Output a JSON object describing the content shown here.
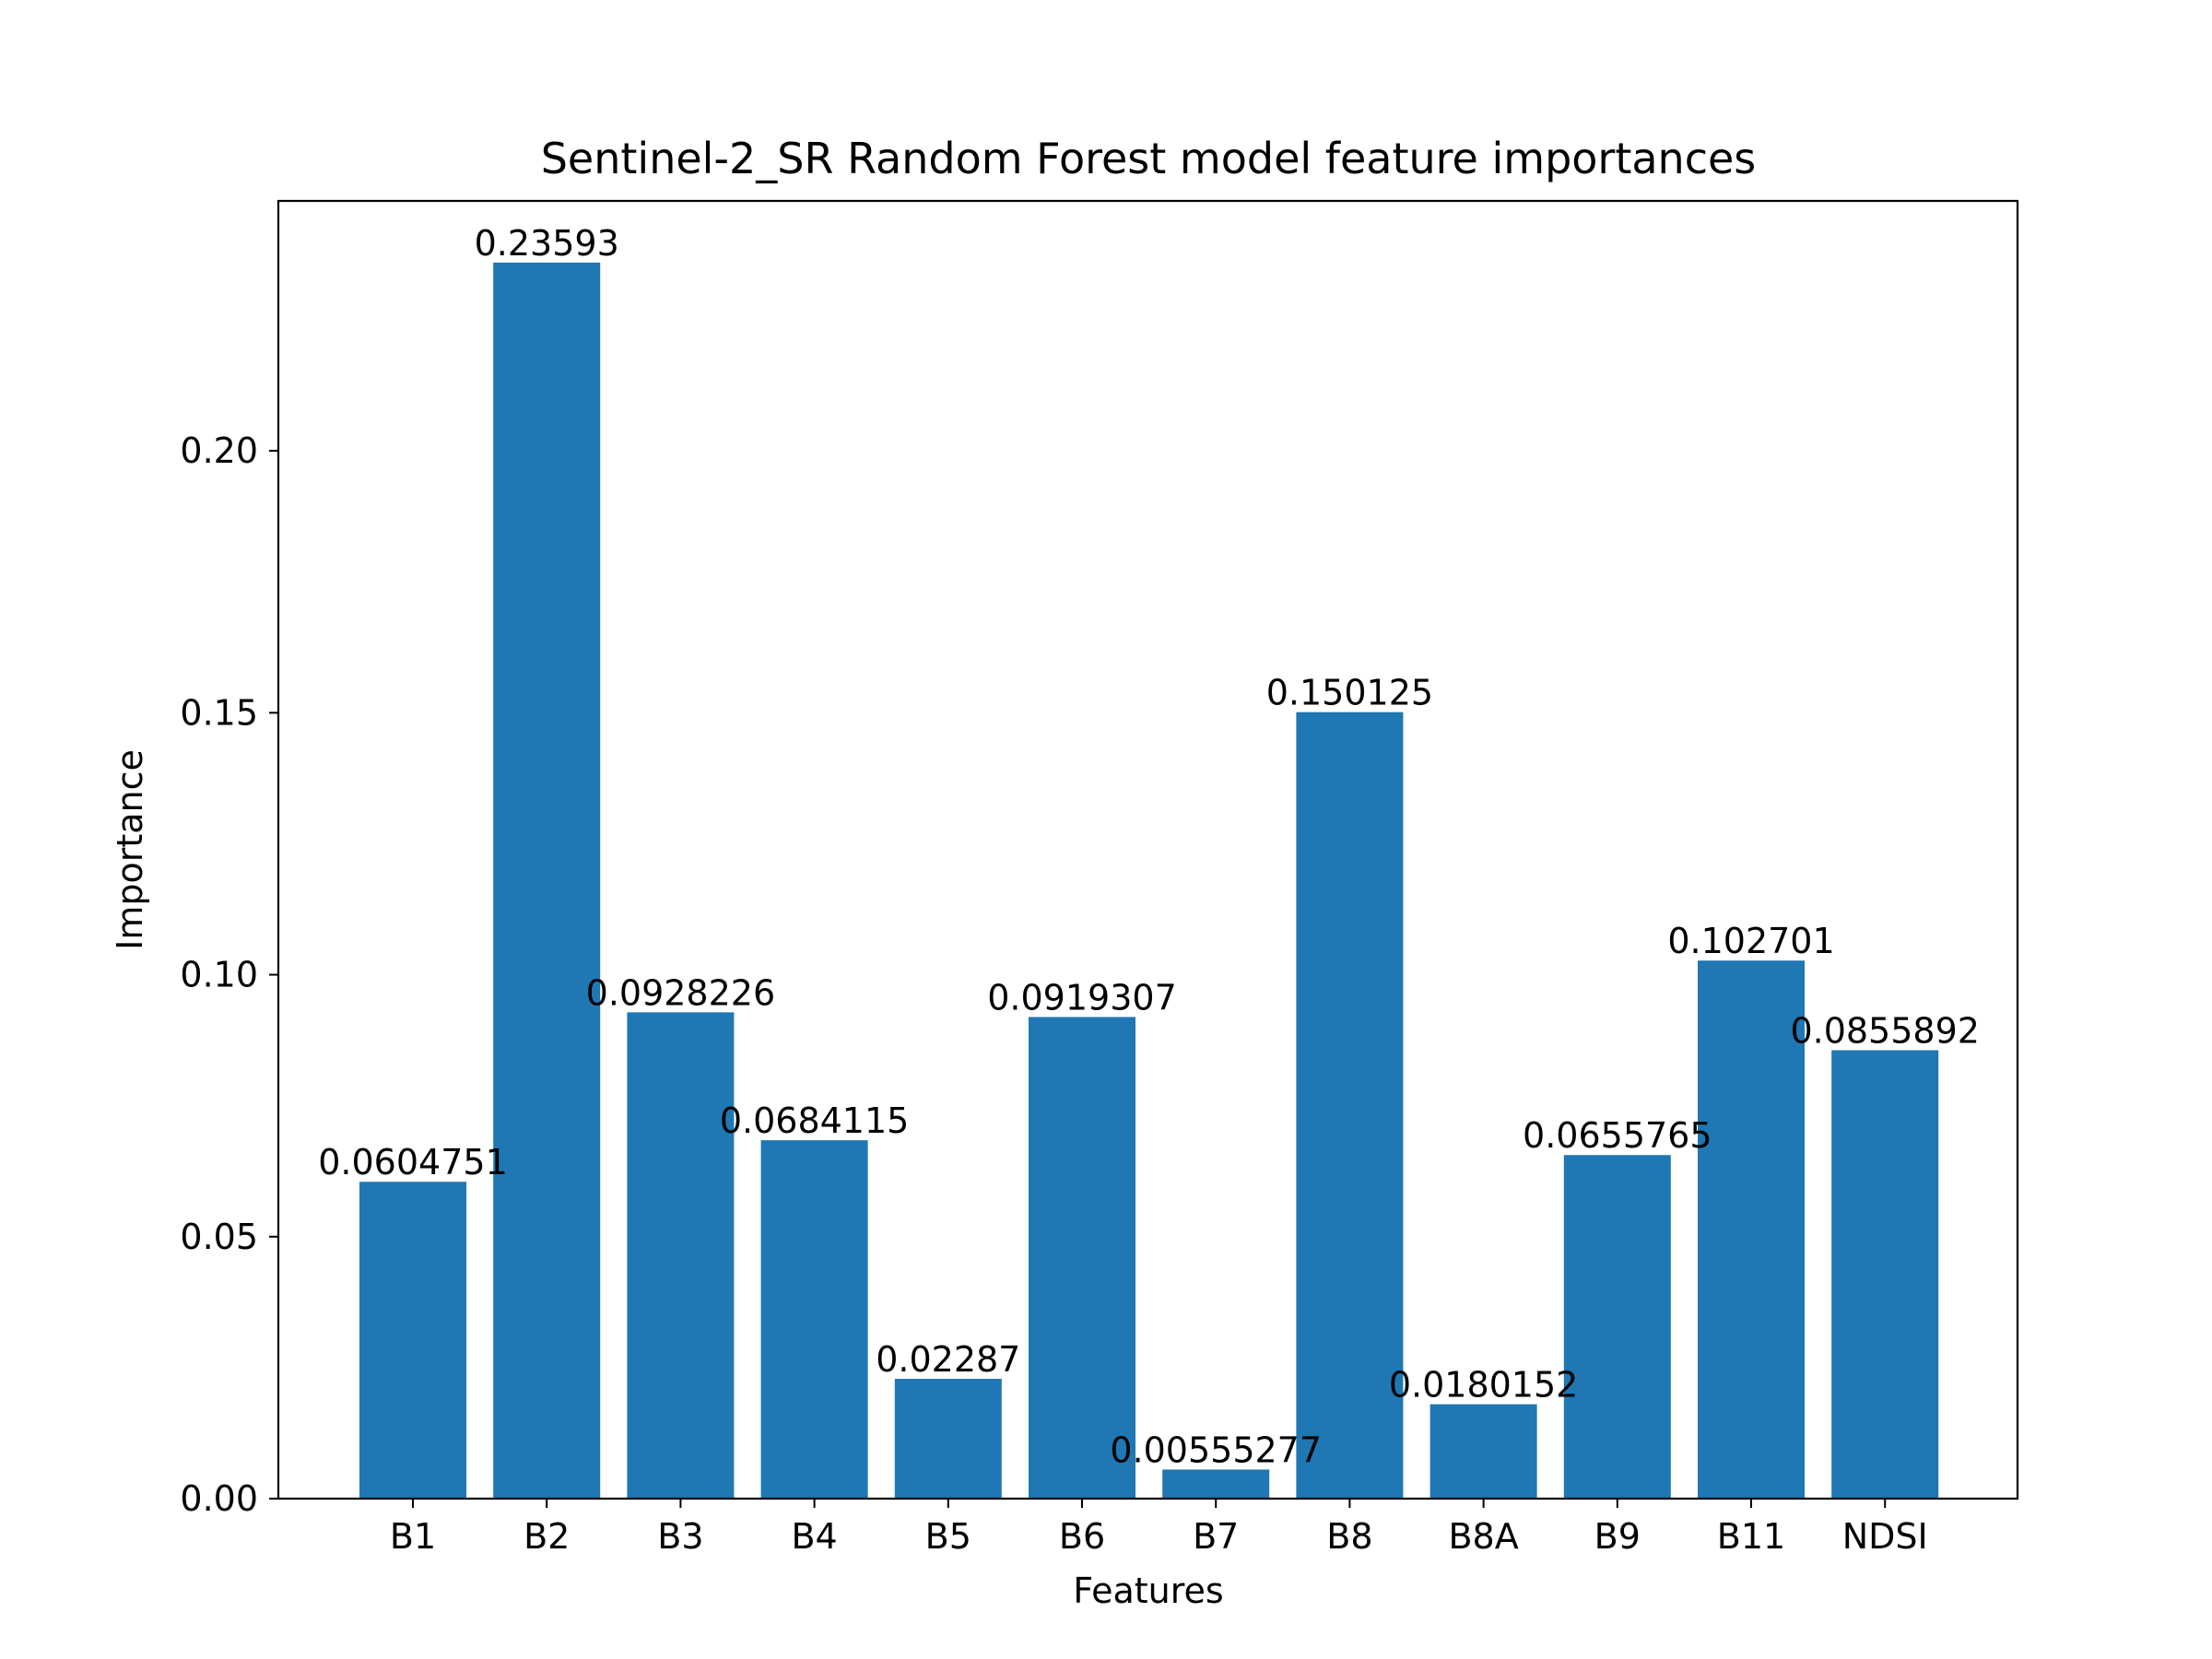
{
  "chart_data": {
    "type": "bar",
    "title": "Sentinel-2_SR Random Forest model feature importances",
    "xlabel": "Features",
    "ylabel": "Importance",
    "categories": [
      "B1",
      "B2",
      "B3",
      "B4",
      "B5",
      "B6",
      "B7",
      "B8",
      "B8A",
      "B9",
      "B11",
      "NDSI"
    ],
    "values": [
      0.0604751,
      0.23593,
      0.0928226,
      0.0684115,
      0.02287,
      0.0919307,
      0.00555277,
      0.150125,
      0.0180152,
      0.0655765,
      0.102701,
      0.0855892
    ],
    "data_labels": [
      "0.0604751",
      "0.23593",
      "0.0928226",
      "0.0684115",
      "0.02287",
      "0.0919307",
      "0.00555277",
      "0.150125",
      "0.0180152",
      "0.0655765",
      "0.102701",
      "0.0855892"
    ],
    "ylim": [
      0,
      0.2477
    ],
    "yticks": [
      0.0,
      0.05,
      0.1,
      0.15,
      0.2
    ],
    "ytick_labels": [
      "0.00",
      "0.05",
      "0.10",
      "0.15",
      "0.20"
    ],
    "grid": false,
    "bar_color": "#1f77b4"
  }
}
